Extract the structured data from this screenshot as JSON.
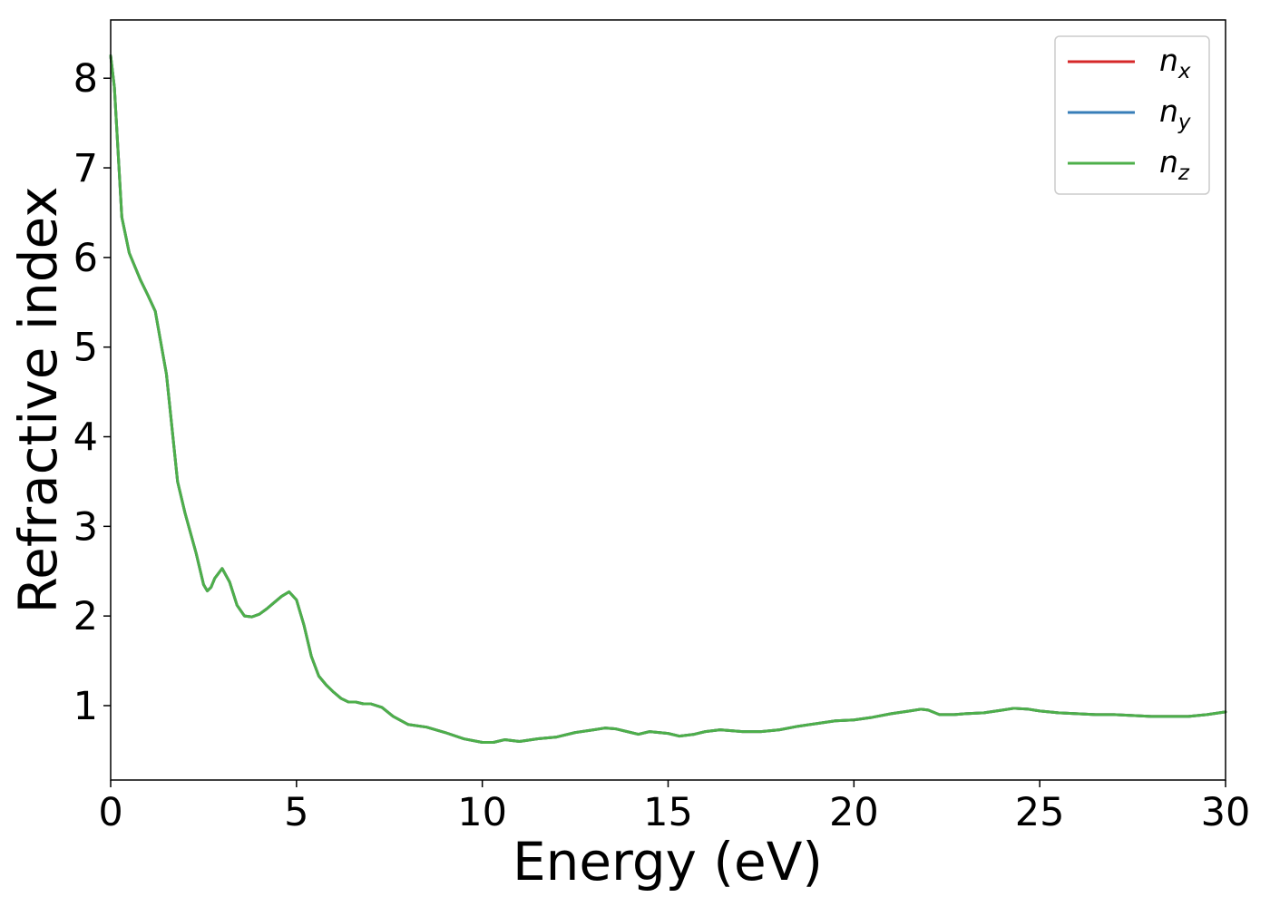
{
  "chart_data": {
    "type": "line",
    "xlabel": "Energy (eV)",
    "ylabel": "Refractive index",
    "xlim": [
      0,
      30
    ],
    "ylim": [
      0.17,
      8.65
    ],
    "xticks": [
      0,
      5,
      10,
      15,
      20,
      25,
      30
    ],
    "yticks": [
      1,
      2,
      3,
      4,
      5,
      6,
      7,
      8
    ],
    "legend_position": "top-right",
    "grid": false,
    "x": [
      0,
      0.1,
      0.3,
      0.5,
      0.8,
      1.0,
      1.2,
      1.5,
      1.8,
      2.0,
      2.3,
      2.5,
      2.6,
      2.7,
      2.8,
      3.0,
      3.2,
      3.4,
      3.6,
      3.8,
      4.0,
      4.2,
      4.4,
      4.6,
      4.8,
      5.0,
      5.2,
      5.4,
      5.6,
      5.8,
      6.0,
      6.2,
      6.4,
      6.6,
      6.8,
      7.0,
      7.3,
      7.6,
      8.0,
      8.5,
      9.0,
      9.5,
      10.0,
      10.3,
      10.6,
      11.0,
      11.5,
      12.0,
      12.5,
      13.0,
      13.3,
      13.6,
      14.0,
      14.2,
      14.5,
      15.0,
      15.3,
      15.7,
      16.0,
      16.4,
      17.0,
      17.5,
      18.0,
      18.5,
      19.0,
      19.5,
      20.0,
      20.5,
      21.0,
      21.5,
      21.8,
      22.0,
      22.3,
      22.7,
      23.0,
      23.5,
      24.0,
      24.3,
      24.7,
      25.0,
      25.5,
      26.0,
      26.5,
      27.0,
      27.5,
      28.0,
      28.5,
      29.0,
      29.5,
      30.0
    ],
    "series": [
      {
        "name": "n_x",
        "color": "#d62728",
        "values": [
          8.25,
          7.9,
          6.45,
          6.05,
          5.75,
          5.58,
          5.4,
          4.7,
          3.5,
          3.15,
          2.7,
          2.35,
          2.28,
          2.32,
          2.42,
          2.53,
          2.38,
          2.12,
          2.0,
          1.99,
          2.02,
          2.08,
          2.15,
          2.22,
          2.27,
          2.18,
          1.9,
          1.55,
          1.33,
          1.23,
          1.15,
          1.08,
          1.04,
          1.04,
          1.02,
          1.02,
          0.98,
          0.88,
          0.79,
          0.76,
          0.7,
          0.63,
          0.59,
          0.59,
          0.62,
          0.6,
          0.63,
          0.65,
          0.7,
          0.73,
          0.75,
          0.74,
          0.7,
          0.68,
          0.71,
          0.69,
          0.66,
          0.68,
          0.71,
          0.73,
          0.71,
          0.71,
          0.73,
          0.77,
          0.8,
          0.83,
          0.84,
          0.87,
          0.91,
          0.94,
          0.96,
          0.95,
          0.9,
          0.9,
          0.91,
          0.92,
          0.95,
          0.97,
          0.96,
          0.94,
          0.92,
          0.91,
          0.9,
          0.9,
          0.89,
          0.88,
          0.88,
          0.88,
          0.9,
          0.93
        ]
      },
      {
        "name": "n_y",
        "color": "#377eb8",
        "values": [
          8.25,
          7.9,
          6.45,
          6.05,
          5.75,
          5.58,
          5.4,
          4.7,
          3.5,
          3.15,
          2.7,
          2.35,
          2.28,
          2.32,
          2.42,
          2.53,
          2.38,
          2.12,
          2.0,
          1.99,
          2.02,
          2.08,
          2.15,
          2.22,
          2.27,
          2.18,
          1.9,
          1.55,
          1.33,
          1.23,
          1.15,
          1.08,
          1.04,
          1.04,
          1.02,
          1.02,
          0.98,
          0.88,
          0.79,
          0.76,
          0.7,
          0.63,
          0.59,
          0.59,
          0.62,
          0.6,
          0.63,
          0.65,
          0.7,
          0.73,
          0.75,
          0.74,
          0.7,
          0.68,
          0.71,
          0.69,
          0.66,
          0.68,
          0.71,
          0.73,
          0.71,
          0.71,
          0.73,
          0.77,
          0.8,
          0.83,
          0.84,
          0.87,
          0.91,
          0.94,
          0.96,
          0.95,
          0.9,
          0.9,
          0.91,
          0.92,
          0.95,
          0.97,
          0.96,
          0.94,
          0.92,
          0.91,
          0.9,
          0.9,
          0.89,
          0.88,
          0.88,
          0.88,
          0.9,
          0.93
        ]
      },
      {
        "name": "n_z",
        "color": "#4daf4a",
        "values": [
          8.25,
          7.9,
          6.45,
          6.05,
          5.75,
          5.58,
          5.4,
          4.7,
          3.5,
          3.15,
          2.7,
          2.35,
          2.28,
          2.32,
          2.42,
          2.53,
          2.38,
          2.12,
          2.0,
          1.99,
          2.02,
          2.08,
          2.15,
          2.22,
          2.27,
          2.18,
          1.9,
          1.55,
          1.33,
          1.23,
          1.15,
          1.08,
          1.04,
          1.04,
          1.02,
          1.02,
          0.98,
          0.88,
          0.79,
          0.76,
          0.7,
          0.63,
          0.59,
          0.59,
          0.62,
          0.6,
          0.63,
          0.65,
          0.7,
          0.73,
          0.75,
          0.74,
          0.7,
          0.68,
          0.71,
          0.69,
          0.66,
          0.68,
          0.71,
          0.73,
          0.71,
          0.71,
          0.73,
          0.77,
          0.8,
          0.83,
          0.84,
          0.87,
          0.91,
          0.94,
          0.96,
          0.95,
          0.9,
          0.9,
          0.91,
          0.92,
          0.95,
          0.97,
          0.96,
          0.94,
          0.92,
          0.91,
          0.9,
          0.9,
          0.89,
          0.88,
          0.88,
          0.88,
          0.9,
          0.93
        ]
      }
    ],
    "legend": [
      {
        "main": "n",
        "sub": "x",
        "color": "#d62728"
      },
      {
        "main": "n",
        "sub": "y",
        "color": "#377eb8"
      },
      {
        "main": "n",
        "sub": "z",
        "color": "#4daf4a"
      }
    ]
  }
}
